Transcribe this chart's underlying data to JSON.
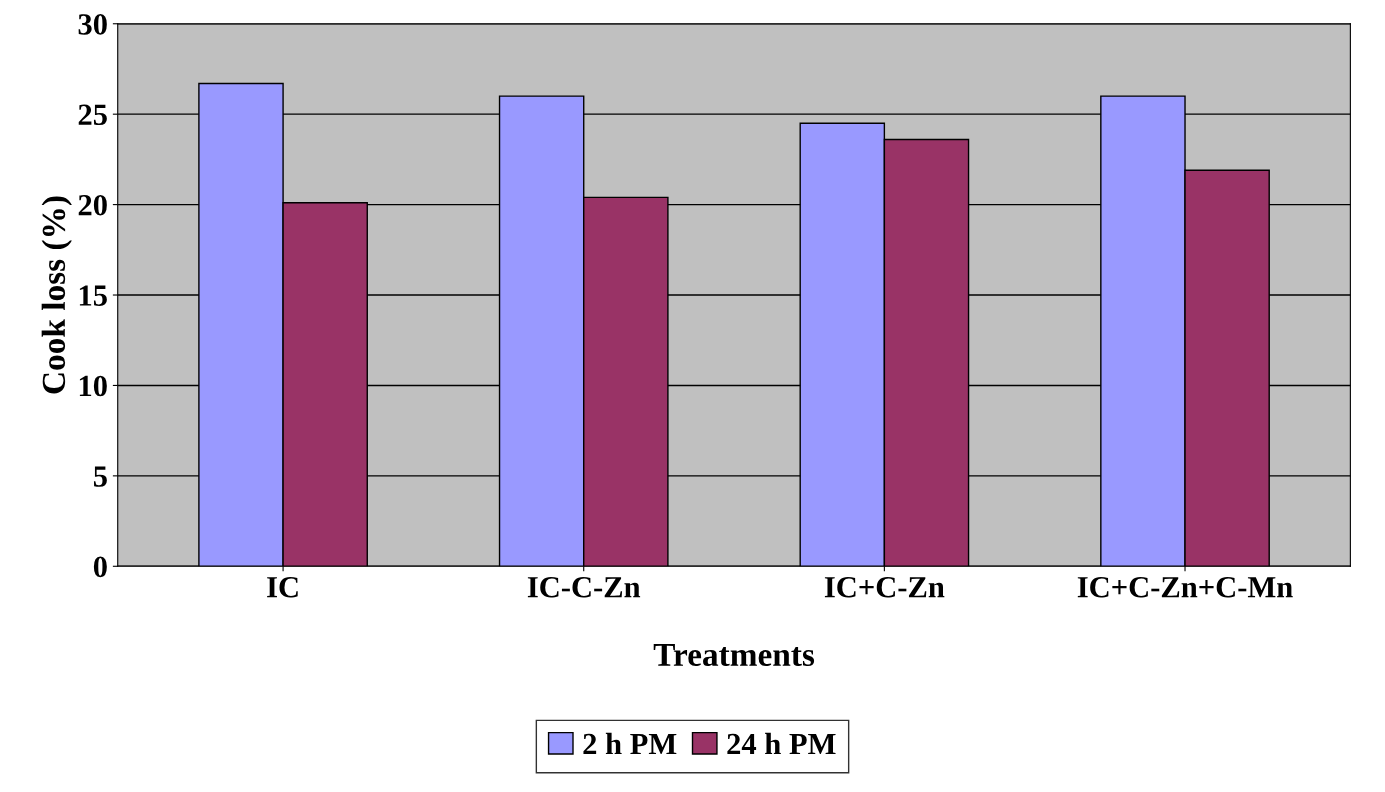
{
  "chart_data": {
    "type": "bar",
    "xlabel": "Treatments",
    "ylabel": "Cook loss (%)",
    "categories": [
      "IC",
      "IC-C-Zn",
      "IC+C-Zn",
      "IC+C-Zn+C-Mn"
    ],
    "series": [
      {
        "name": "2 h PM",
        "color": "#9999ff",
        "values": [
          26.7,
          26.0,
          24.5,
          26.0
        ]
      },
      {
        "name": "24 h PM",
        "color": "#993366",
        "values": [
          20.1,
          20.4,
          23.6,
          21.9
        ]
      }
    ],
    "ylim": [
      0,
      30
    ],
    "yticks": [
      0,
      5,
      10,
      15,
      20,
      25,
      30
    ],
    "grid": "y",
    "legend": "bottom"
  }
}
